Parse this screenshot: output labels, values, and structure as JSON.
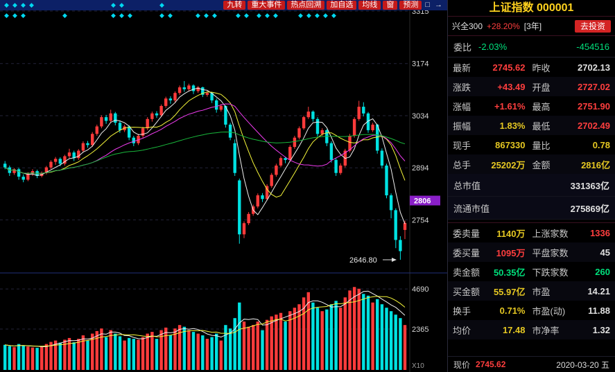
{
  "toolbar": {
    "buttons": [
      "九转",
      "重大事件",
      "热点回溯",
      "加自选",
      "均线",
      "窗",
      "预测"
    ],
    "icons": [
      {
        "name": "popout-window-icon",
        "glyph": "□"
      },
      {
        "name": "exit-arrow-icon",
        "glyph": "→"
      }
    ],
    "marker_rows": {
      "row1": [
        6,
        18,
        30,
        42,
        160,
        172,
        230
      ],
      "row2": [
        6,
        18,
        30,
        90,
        160,
        172,
        184,
        230,
        242,
        282,
        294,
        306,
        340,
        352,
        370,
        382,
        394,
        430,
        442,
        454,
        466,
        478
      ]
    }
  },
  "quote_panel": {
    "title": "上证指数",
    "code": "000001",
    "fund": {
      "name": "兴全300",
      "change": "+28.20%",
      "tag": "[3年]",
      "cta": "去投资"
    },
    "weibi": {
      "label": "委比",
      "value": "-2.03%",
      "net": "-454516"
    },
    "pairs_top": [
      {
        "l1": "最新",
        "v1": "2745.62",
        "c1": "red",
        "l2": "昨收",
        "v2": "2702.13",
        "c2": "white"
      },
      {
        "l1": "涨跌",
        "v1": "+43.49",
        "c1": "red",
        "l2": "开盘",
        "v2": "2727.02",
        "c2": "red"
      },
      {
        "l1": "涨幅",
        "v1": "+1.61%",
        "c1": "red",
        "l2": "最高",
        "v2": "2751.90",
        "c2": "red"
      },
      {
        "l1": "振幅",
        "v1": "1.83%",
        "c1": "yellow",
        "l2": "最低",
        "v2": "2702.49",
        "c2": "red"
      },
      {
        "l1": "现手",
        "v1": "867330",
        "c1": "yellow",
        "l2": "量比",
        "v2": "0.78",
        "c2": "yellow"
      },
      {
        "l1": "总手",
        "v1": "25202万",
        "c1": "yellow",
        "l2": "金额",
        "v2": "2816亿",
        "c2": "yellow"
      }
    ],
    "caps": [
      {
        "l": "总市值",
        "v": "331363亿",
        "c": "white"
      },
      {
        "l": "流通市值",
        "v": "275869亿",
        "c": "white"
      }
    ],
    "pairs_bottom": [
      {
        "l1": "委卖量",
        "v1": "1140万",
        "c1": "yellow",
        "l2": "上涨家数",
        "v2": "1336",
        "c2": "red"
      },
      {
        "l1": "委买量",
        "v1": "1095万",
        "c1": "red",
        "l2": "平盘家数",
        "v2": "45",
        "c2": "white"
      },
      {
        "l1": "卖金额",
        "v1": "50.35亿",
        "c1": "green",
        "l2": "下跌家数",
        "v2": "260",
        "c2": "green"
      },
      {
        "l1": "买金额",
        "v1": "55.97亿",
        "c1": "yellow",
        "l2": "市盈",
        "v2": "14.21",
        "c2": "white"
      },
      {
        "l1": "换手",
        "v1": "0.71%",
        "c1": "yellow",
        "l2": "市盈(动)",
        "v2": "11.88",
        "c2": "white"
      },
      {
        "l1": "均价",
        "v1": "17.48",
        "c1": "yellow",
        "l2": "市净率",
        "v2": "1.32",
        "c2": "white"
      }
    ],
    "footer": {
      "label": "现价",
      "value": "2745.62",
      "color": "red",
      "date": "2020-03-20 五"
    }
  },
  "chart_data": {
    "type": "candlestick",
    "symbol": "上证指数 000001",
    "price_axis": [
      3315,
      3174,
      3034,
      2894,
      2754
    ],
    "price_marker": "2806",
    "low_annotation": "2646.80",
    "volume_axis": [
      4690,
      2365
    ],
    "volume_unit": "X10",
    "ma_colors": {
      "ma5": "#f0f0f0",
      "ma10": "#f7f73a",
      "ma20": "#f03cf0",
      "ma60": "#19b93c"
    },
    "up_color": "#ff3b3b",
    "down_color": "#00e1e1",
    "candles": [
      [
        2905,
        2912,
        2890,
        2895
      ],
      [
        2895,
        2900,
        2872,
        2880
      ],
      [
        2880,
        2893,
        2875,
        2890
      ],
      [
        2890,
        2894,
        2862,
        2870
      ],
      [
        2870,
        2876,
        2855,
        2862
      ],
      [
        2862,
        2882,
        2858,
        2878
      ],
      [
        2878,
        2890,
        2872,
        2885
      ],
      [
        2885,
        2889,
        2866,
        2872
      ],
      [
        2872,
        2884,
        2868,
        2880
      ],
      [
        2880,
        2899,
        2876,
        2895
      ],
      [
        2895,
        2914,
        2890,
        2910
      ],
      [
        2910,
        2923,
        2902,
        2918
      ],
      [
        2918,
        2922,
        2898,
        2905
      ],
      [
        2905,
        2929,
        2900,
        2925
      ],
      [
        2925,
        2945,
        2920,
        2935
      ],
      [
        2935,
        2940,
        2912,
        2920
      ],
      [
        2920,
        2944,
        2915,
        2940
      ],
      [
        2940,
        2965,
        2935,
        2960
      ],
      [
        2960,
        2966,
        2948,
        2955
      ],
      [
        2955,
        2990,
        2950,
        2985
      ],
      [
        2985,
        3010,
        2980,
        3005
      ],
      [
        3005,
        3035,
        3000,
        3030
      ],
      [
        3030,
        3036,
        3012,
        3020
      ],
      [
        3020,
        3050,
        3015,
        3040
      ],
      [
        3040,
        3044,
        3008,
        3015
      ],
      [
        3015,
        3020,
        2988,
        2995
      ],
      [
        2995,
        3010,
        2990,
        3005
      ],
      [
        3005,
        3008,
        2968,
        2975
      ],
      [
        2975,
        2980,
        2952,
        2960
      ],
      [
        2960,
        2985,
        2955,
        2980
      ],
      [
        2980,
        3004,
        2975,
        3000
      ],
      [
        3000,
        3030,
        2995,
        3025
      ],
      [
        3025,
        3045,
        3018,
        3040
      ],
      [
        3040,
        3046,
        3028,
        3035
      ],
      [
        3035,
        3064,
        3030,
        3060
      ],
      [
        3060,
        3085,
        3055,
        3080
      ],
      [
        3080,
        3086,
        3066,
        3075
      ],
      [
        3075,
        3099,
        3070,
        3095
      ],
      [
        3095,
        3115,
        3090,
        3110
      ],
      [
        3110,
        3127,
        3098,
        3105
      ],
      [
        3105,
        3120,
        3100,
        3115
      ],
      [
        3115,
        3118,
        3092,
        3100
      ],
      [
        3100,
        3114,
        3095,
        3110
      ],
      [
        3110,
        3112,
        3084,
        3090
      ],
      [
        3090,
        3100,
        3085,
        3095
      ],
      [
        3095,
        3098,
        3068,
        3075
      ],
      [
        3075,
        3080,
        3042,
        3050
      ],
      [
        3050,
        3065,
        3045,
        3060
      ],
      [
        3060,
        3062,
        3002,
        3010
      ],
      [
        3010,
        3015,
        2968,
        2975
      ],
      [
        2960,
        2970,
        2872,
        2880
      ],
      [
        2860,
        2865,
        2690,
        2715
      ],
      [
        2715,
        2750,
        2705,
        2745
      ],
      [
        2745,
        2775,
        2740,
        2770
      ],
      [
        2770,
        2795,
        2765,
        2790
      ],
      [
        2790,
        2825,
        2785,
        2820
      ],
      [
        2820,
        2826,
        2802,
        2810
      ],
      [
        2810,
        2850,
        2806,
        2845
      ],
      [
        2845,
        2880,
        2840,
        2875
      ],
      [
        2875,
        2905,
        2870,
        2900
      ],
      [
        2900,
        2925,
        2895,
        2920
      ],
      [
        2920,
        2924,
        2906,
        2915
      ],
      [
        2915,
        2955,
        2910,
        2950
      ],
      [
        2950,
        2980,
        2945,
        2975
      ],
      [
        2975,
        3005,
        2970,
        3000
      ],
      [
        3000,
        3034,
        2996,
        3030
      ],
      [
        3030,
        3058,
        3025,
        3045
      ],
      [
        3045,
        3048,
        3018,
        3025
      ],
      [
        3025,
        3030,
        2978,
        2985
      ],
      [
        2985,
        3000,
        2980,
        2995
      ],
      [
        2995,
        2998,
        2952,
        2960
      ],
      [
        2960,
        2965,
        2908,
        2915
      ],
      [
        2915,
        2920,
        2872,
        2880
      ],
      [
        2880,
        2906,
        2875,
        2900
      ],
      [
        2900,
        2945,
        2895,
        2940
      ],
      [
        2940,
        2985,
        2935,
        2980
      ],
      [
        2980,
        3030,
        2975,
        3025
      ],
      [
        3025,
        3074,
        3020,
        3058
      ],
      [
        3058,
        3070,
        3032,
        3040
      ],
      [
        3040,
        3044,
        2988,
        2995
      ],
      [
        2995,
        3015,
        2990,
        3010
      ],
      [
        3010,
        3012,
        2932,
        2940
      ],
      [
        2940,
        2946,
        2892,
        2900
      ],
      [
        2900,
        2905,
        2812,
        2820
      ],
      [
        2820,
        2825,
        2758,
        2780
      ],
      [
        2780,
        2785,
        2678,
        2700
      ],
      [
        2700,
        2710,
        2646.8,
        2670
      ],
      [
        2727.02,
        2751.9,
        2702.49,
        2745.62
      ]
    ],
    "volumes": [
      1450,
      1380,
      1320,
      1500,
      1420,
      1350,
      1300,
      1280,
      1340,
      1500,
      1620,
      1700,
      1580,
      1750,
      1850,
      1600,
      1800,
      2000,
      1700,
      2100,
      2250,
      2400,
      1900,
      2300,
      2100,
      1950,
      1700,
      1850,
      1800,
      1750,
      1900,
      2100,
      2200,
      1800,
      2300,
      2450,
      2000,
      2400,
      2600,
      2500,
      2300,
      2200,
      2100,
      2000,
      1800,
      1900,
      2100,
      1700,
      2600,
      2400,
      3000,
      3900,
      2800,
      2500,
      2600,
      2800,
      2300,
      2900,
      3100,
      3200,
      3300,
      2800,
      3400,
      3600,
      3800,
      4200,
      4500,
      3900,
      3600,
      3400,
      3500,
      3800,
      4000,
      3600,
      4200,
      4600,
      4800,
      4700,
      4400,
      4300,
      3900,
      4100,
      3800,
      3600,
      3400,
      3200,
      3000,
      2600
    ]
  }
}
